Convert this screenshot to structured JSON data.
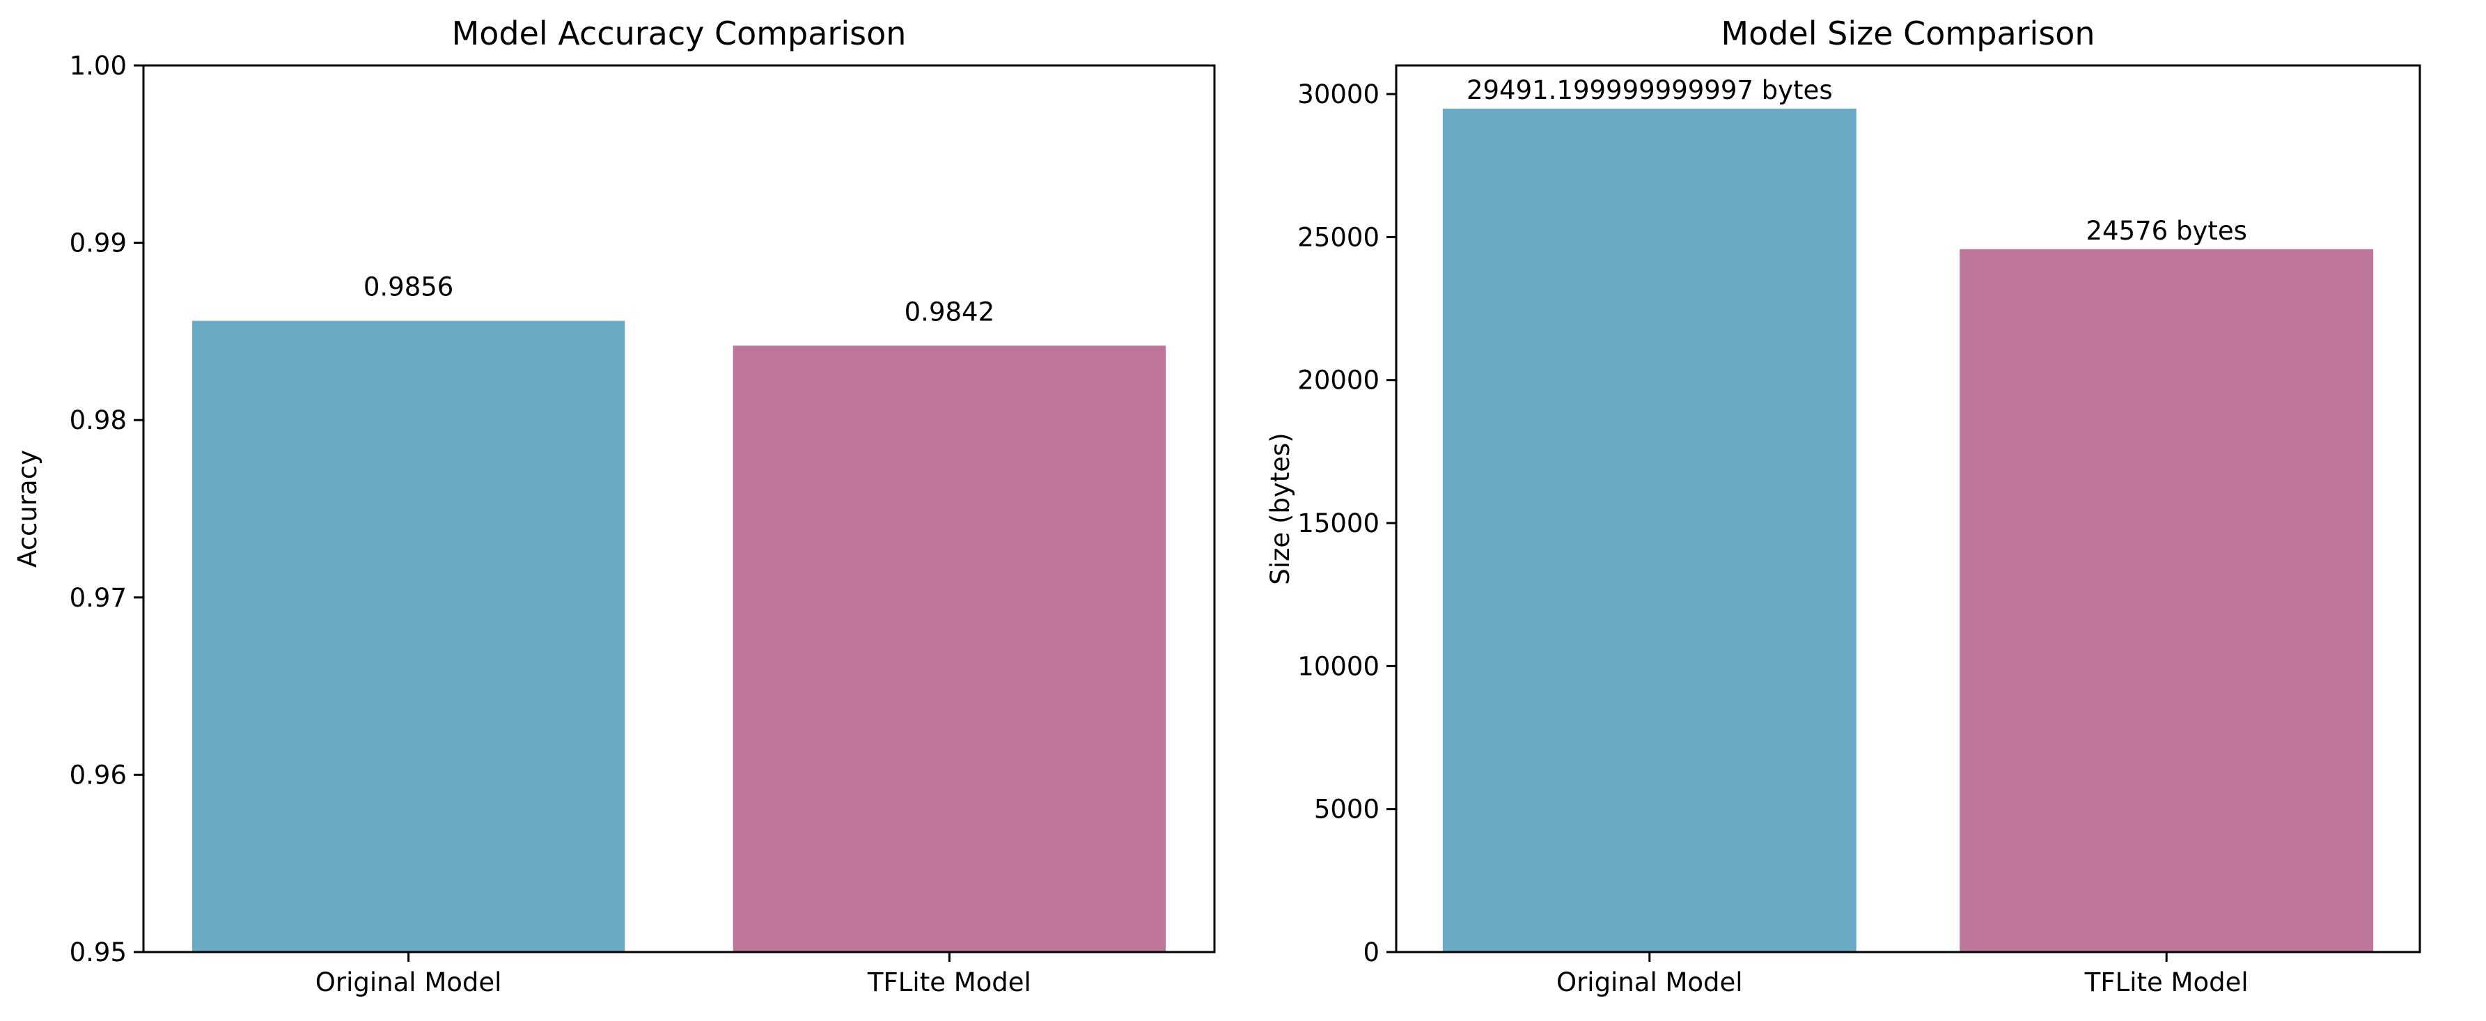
{
  "chart_data": [
    {
      "type": "bar",
      "title": "Model Accuracy Comparison",
      "xlabel": "",
      "ylabel": "Accuracy",
      "categories": [
        "Original Model",
        "TFLite Model"
      ],
      "values": [
        0.9856,
        0.9842
      ],
      "value_labels": [
        "0.9856",
        "0.9842"
      ],
      "ylim": [
        0.95,
        1.0
      ],
      "yticks": [
        0.95,
        0.96,
        0.97,
        0.98,
        0.99,
        1.0
      ],
      "ytick_labels": [
        "0.95",
        "0.96",
        "0.97",
        "0.98",
        "0.99",
        "1.00"
      ],
      "colors": [
        "#6BAAC5",
        "#BD7599"
      ],
      "grid": false,
      "legend": "none"
    },
    {
      "type": "bar",
      "title": "Model Size Comparison",
      "xlabel": "",
      "ylabel": "Size (bytes)",
      "categories": [
        "Original Model",
        "TFLite Model"
      ],
      "values": [
        29491.199999999997,
        24576
      ],
      "value_labels": [
        "29491.199999999997 bytes",
        "24576 bytes"
      ],
      "ylim": [
        0,
        31000
      ],
      "yticks": [
        0,
        5000,
        10000,
        15000,
        20000,
        25000,
        30000
      ],
      "ytick_labels": [
        "0",
        "5000",
        "10000",
        "15000",
        "20000",
        "25000",
        "30000"
      ],
      "colors": [
        "#6BAAC5",
        "#BD7599"
      ],
      "grid": false,
      "legend": "none"
    }
  ]
}
